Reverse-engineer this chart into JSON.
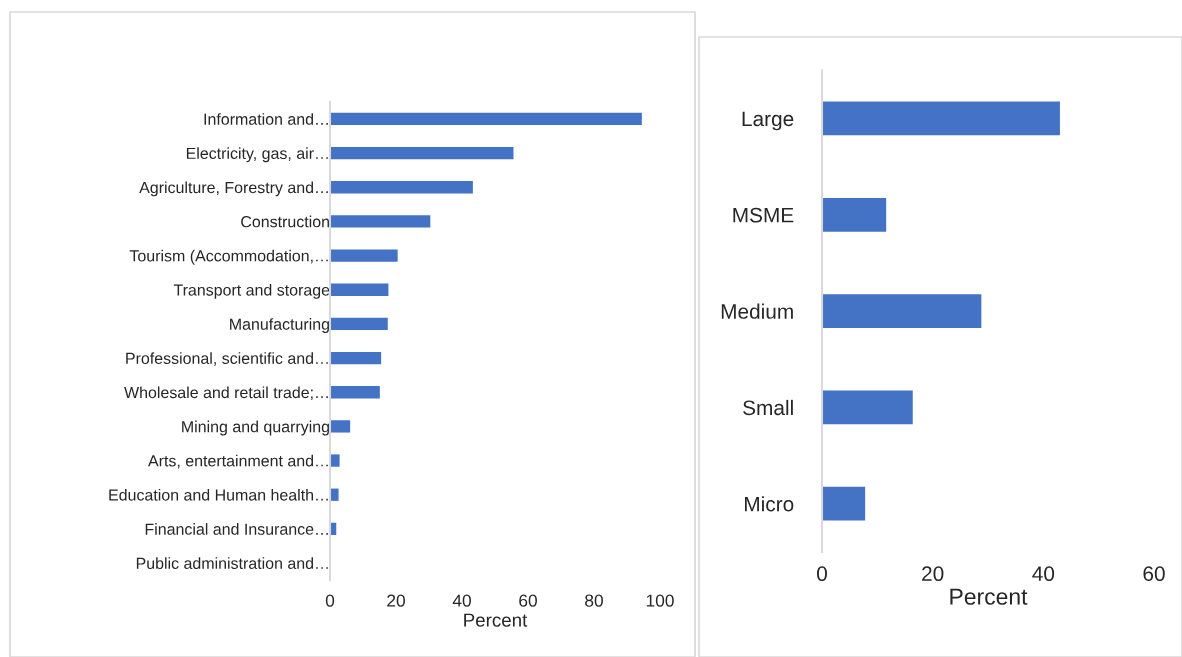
{
  "chart_data": [
    {
      "type": "bar",
      "orientation": "horizontal",
      "xlabel": "Percent",
      "categories": [
        "Information and…",
        "Electricity, gas, air…",
        "Agriculture, Forestry and…",
        "Construction",
        "Tourism (Accommodation,…",
        "Transport and storage",
        "Manufacturing",
        "Professional, scientific and…",
        "Wholesale and retail trade;…",
        "Mining and quarrying",
        "Arts, entertainment and…",
        "Education and Human health…",
        "Financial and Insurance…",
        "Public administration and…"
      ],
      "values": [
        94.5,
        55.6,
        43.3,
        30.4,
        20.5,
        17.7,
        17.5,
        15.5,
        15.1,
        6.1,
        2.9,
        2.6,
        1.9,
        0
      ],
      "color": "#4472c4",
      "xlim": [
        0,
        100
      ],
      "xticks": [
        0,
        20,
        40,
        60,
        80,
        100
      ],
      "grid": false,
      "legend": false
    },
    {
      "type": "bar",
      "orientation": "horizontal",
      "xlabel": "Percent",
      "categories": [
        "Large",
        "MSME",
        "Medium",
        "Small",
        "Micro"
      ],
      "values": [
        43.0,
        11.6,
        28.8,
        16.4,
        7.8
      ],
      "color": "#4472c4",
      "xlim": [
        0,
        60
      ],
      "xticks": [
        0,
        20,
        40,
        60
      ],
      "grid": false,
      "legend": false
    }
  ]
}
